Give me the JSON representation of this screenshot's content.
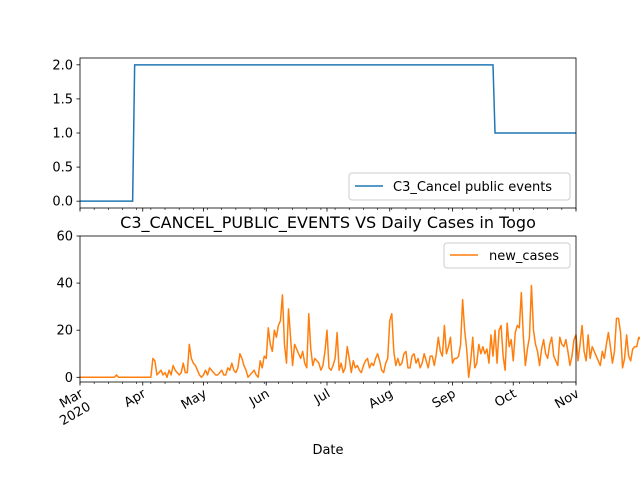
{
  "chart_data": [
    {
      "type": "line",
      "title": "",
      "xlabel": "",
      "ylabel": "",
      "xlim": [
        "2020-03-01",
        "2020-11-01"
      ],
      "ylim": [
        -0.1,
        2.1
      ],
      "yticks": [
        0.0,
        0.5,
        1.0,
        1.5,
        2.0
      ],
      "ytick_labels": [
        "0.0",
        "0.5",
        "1.0",
        "1.5",
        "2.0"
      ],
      "legend_position": "lower-right",
      "grid": false,
      "series": [
        {
          "name": "C3_Cancel public events",
          "color": "#1f77b4",
          "step": true,
          "points": [
            {
              "x": "2020-03-01",
              "y": 0
            },
            {
              "x": "2020-03-27",
              "y": 0
            },
            {
              "x": "2020-03-28",
              "y": 2
            },
            {
              "x": "2020-09-21",
              "y": 2
            },
            {
              "x": "2020-09-22",
              "y": 1
            },
            {
              "x": "2020-11-01",
              "y": 1
            }
          ]
        }
      ]
    },
    {
      "type": "line",
      "title": "C3_CANCEL_PUBLIC_EVENTS VS Daily Cases in Togo",
      "xlabel": "Date",
      "ylabel": "",
      "xlim": [
        "2020-03-01",
        "2020-11-01"
      ],
      "ylim": [
        -2,
        60
      ],
      "yticks": [
        0,
        20,
        40,
        60
      ],
      "ytick_labels": [
        "0",
        "20",
        "40",
        "60"
      ],
      "xtick_labels": [
        "Mar\n2020",
        "Apr",
        "May",
        "Jun",
        "Jul",
        "Aug",
        "Sep",
        "Oct",
        "Nov"
      ],
      "xtick_dates": [
        "2020-03-01",
        "2020-04-01",
        "2020-05-01",
        "2020-06-01",
        "2020-07-01",
        "2020-08-01",
        "2020-09-01",
        "2020-10-01",
        "2020-11-01"
      ],
      "legend_position": "top-right",
      "grid": false,
      "series": [
        {
          "name": "new_cases",
          "color": "#ff7f0e",
          "start_date": "2020-03-01",
          "values": [
            0,
            0,
            0,
            0,
            0,
            0,
            0,
            0,
            0,
            0,
            0,
            0,
            0,
            0,
            0,
            0,
            0,
            0,
            1,
            0,
            0,
            0,
            0,
            0,
            0,
            0,
            0,
            0,
            0,
            0,
            0,
            0,
            0,
            0,
            0,
            0,
            8,
            7,
            1,
            2,
            3,
            1,
            2,
            0,
            3,
            1,
            5,
            3,
            2,
            1,
            2,
            6,
            2,
            2,
            14,
            8,
            6,
            5,
            3,
            1,
            0,
            1,
            3,
            1,
            4,
            3,
            2,
            1,
            1,
            2,
            3,
            1,
            1,
            4,
            3,
            6,
            3,
            2,
            4,
            10,
            8,
            5,
            3,
            0,
            1,
            2,
            3,
            1,
            0,
            7,
            4,
            9,
            8,
            21,
            14,
            11,
            20,
            17,
            22,
            24,
            35,
            14,
            6,
            29,
            17,
            5,
            14,
            12,
            10,
            8,
            11,
            6,
            4,
            27,
            12,
            5,
            8,
            7,
            6,
            3,
            5,
            11,
            20,
            4,
            3,
            5,
            8,
            19,
            3,
            6,
            2,
            4,
            13,
            8,
            2,
            7,
            4,
            5,
            3,
            2,
            5,
            7,
            8,
            4,
            6,
            5,
            8,
            10,
            7,
            3,
            2,
            6,
            8,
            24,
            27,
            11,
            5,
            8,
            5,
            6,
            10,
            11,
            4,
            4,
            9,
            10,
            6,
            8,
            4,
            6,
            10,
            7,
            4,
            9,
            9,
            5,
            10,
            17,
            11,
            9,
            22,
            10,
            13,
            17,
            6,
            8,
            8,
            9,
            14,
            33,
            20,
            12,
            0,
            7,
            17,
            4,
            6,
            14,
            10,
            13,
            10,
            12,
            6,
            18,
            9,
            20,
            6,
            20,
            22,
            9,
            3,
            23,
            13,
            16,
            7,
            19,
            22,
            21,
            36,
            17,
            5,
            12,
            17,
            39,
            20,
            14,
            11,
            5,
            12,
            16,
            10,
            8,
            14,
            17,
            9,
            7,
            5,
            17,
            14,
            13,
            16,
            11,
            5,
            9,
            16,
            18,
            7,
            14,
            22,
            11,
            7,
            18,
            8,
            13,
            11,
            9,
            7,
            5,
            11,
            8,
            14,
            19,
            13,
            6,
            11,
            25,
            25,
            19,
            4,
            8,
            18,
            9,
            7,
            12,
            13,
            13,
            17,
            16,
            5,
            11,
            12,
            23,
            15,
            17,
            23,
            31,
            20,
            16,
            19,
            33,
            19,
            16,
            24,
            25,
            15,
            5,
            24,
            13,
            10,
            58,
            14,
            20,
            26
          ]
        }
      ]
    }
  ]
}
